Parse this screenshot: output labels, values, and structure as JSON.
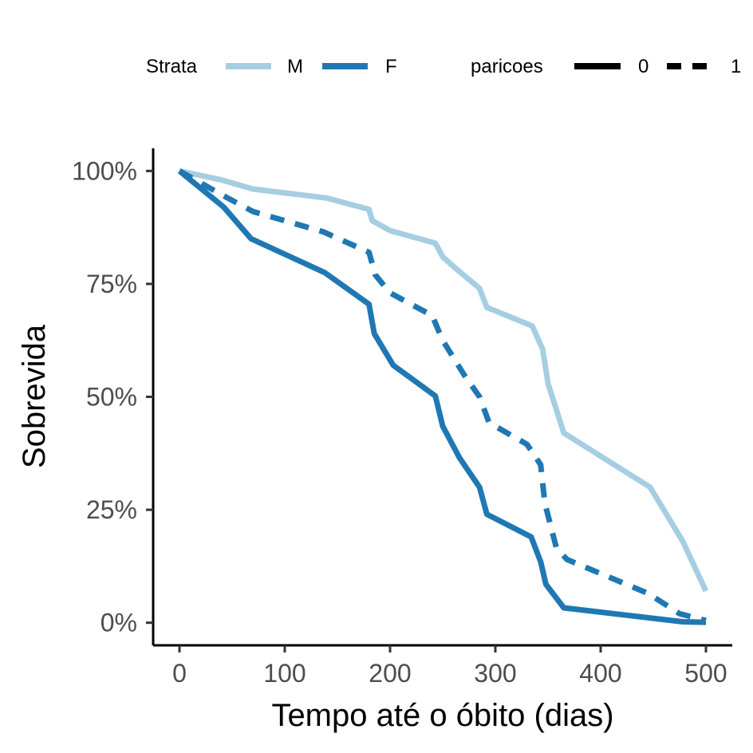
{
  "chart_data": {
    "type": "line",
    "xlabel": "Tempo até o óbito (dias)",
    "ylabel": "Sobrevida",
    "xlim": [
      -25,
      525
    ],
    "ylim": [
      -0.05,
      1.05
    ],
    "x_ticks": [
      0,
      100,
      200,
      300,
      400,
      500
    ],
    "x_tick_labels": [
      "0",
      "100",
      "200",
      "300",
      "400",
      "500"
    ],
    "y_ticks": [
      0,
      0.25,
      0.5,
      0.75,
      1.0
    ],
    "y_tick_labels": [
      "0%",
      "25%",
      "50%",
      "75%",
      "100%"
    ],
    "grid": false,
    "legend": {
      "position": "top",
      "strata_title": "Strata",
      "strata_items": [
        {
          "label": "M",
          "color": "#a6cee3"
        },
        {
          "label": "F",
          "color": "#1f78b4"
        }
      ],
      "paricoes_title": "paricoes",
      "paricoes_items": [
        {
          "label": "0",
          "linetype": "solid"
        },
        {
          "label": "1",
          "linetype": "dashed"
        }
      ]
    },
    "series": [
      {
        "strata": "M",
        "paricoes": "0",
        "color": "#a6cee3",
        "linetype": "solid",
        "points": [
          [
            0,
            1.0
          ],
          [
            40,
            0.98
          ],
          [
            70,
            0.96
          ],
          [
            140,
            0.94
          ],
          [
            180,
            0.915
          ],
          [
            183,
            0.89
          ],
          [
            200,
            0.868
          ],
          [
            243,
            0.84
          ],
          [
            250,
            0.81
          ],
          [
            262,
            0.785
          ],
          [
            285,
            0.74
          ],
          [
            292,
            0.698
          ],
          [
            335,
            0.657
          ],
          [
            345,
            0.605
          ],
          [
            350,
            0.53
          ],
          [
            365,
            0.42
          ],
          [
            447,
            0.3
          ],
          [
            478,
            0.18
          ],
          [
            500,
            0.07
          ]
        ]
      },
      {
        "strata": "F",
        "paricoes": "0",
        "color": "#1f78b4",
        "linetype": "solid",
        "points": [
          [
            0,
            1.0
          ],
          [
            42,
            0.92
          ],
          [
            68,
            0.85
          ],
          [
            138,
            0.775
          ],
          [
            180,
            0.705
          ],
          [
            185,
            0.64
          ],
          [
            203,
            0.57
          ],
          [
            243,
            0.502
          ],
          [
            250,
            0.435
          ],
          [
            266,
            0.365
          ],
          [
            285,
            0.3
          ],
          [
            292,
            0.24
          ],
          [
            334,
            0.19
          ],
          [
            343,
            0.135
          ],
          [
            348,
            0.085
          ],
          [
            365,
            0.033
          ],
          [
            478,
            0.002
          ],
          [
            500,
            0.001
          ]
        ]
      },
      {
        "strata": "F",
        "paricoes": "1",
        "color": "#1f78b4",
        "linetype": "dashed",
        "points": [
          [
            0,
            1.0
          ],
          [
            42,
            0.945
          ],
          [
            70,
            0.91
          ],
          [
            137,
            0.865
          ],
          [
            180,
            0.82
          ],
          [
            186,
            0.77
          ],
          [
            200,
            0.73
          ],
          [
            240,
            0.68
          ],
          [
            250,
            0.625
          ],
          [
            270,
            0.55
          ],
          [
            285,
            0.5
          ],
          [
            294,
            0.443
          ],
          [
            330,
            0.395
          ],
          [
            343,
            0.35
          ],
          [
            347,
            0.265
          ],
          [
            358,
            0.165
          ],
          [
            368,
            0.14
          ],
          [
            445,
            0.065
          ],
          [
            475,
            0.02
          ],
          [
            500,
            0.005
          ]
        ]
      }
    ]
  }
}
